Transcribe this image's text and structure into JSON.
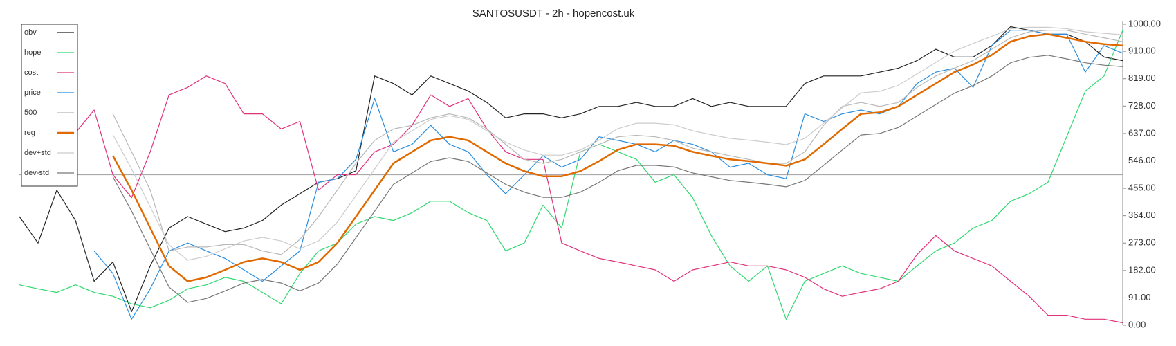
{
  "chart_data": {
    "type": "line",
    "title": "SANTOSUSDT - 2h - hopencost.uk",
    "ylim": [
      0,
      1000
    ],
    "yticks": [
      {
        "value": 0,
        "label": "0.00"
      },
      {
        "value": 91,
        "label": "91.00"
      },
      {
        "value": 182,
        "label": "182.00"
      },
      {
        "value": 273,
        "label": "273.00"
      },
      {
        "value": 364,
        "label": "364.00"
      },
      {
        "value": 455,
        "label": "455.00"
      },
      {
        "value": 546,
        "label": "546.00"
      },
      {
        "value": 637,
        "label": "637.00"
      },
      {
        "value": 728,
        "label": "728.00"
      },
      {
        "value": 819,
        "label": "819.00"
      },
      {
        "value": 910,
        "label": "910.00"
      },
      {
        "value": 1000,
        "label": "1000.00"
      }
    ],
    "reference_line": 500,
    "legend": "top-left",
    "series": [
      {
        "name": "obv",
        "color": "#222222",
        "values": [
          361,
          273,
          449,
          348,
          146,
          210,
          45,
          197,
          323,
          361,
          336,
          311,
          323,
          348,
          399,
          437,
          475,
          487,
          513,
          828,
          803,
          765,
          828,
          803,
          778,
          740,
          689,
          702,
          702,
          689,
          702,
          727,
          727,
          740,
          727,
          727,
          753,
          727,
          740,
          727,
          727,
          727,
          803,
          828,
          828,
          828,
          841,
          854,
          879,
          917,
          891,
          891,
          929,
          992,
          980,
          967,
          967,
          942,
          891,
          879
        ]
      },
      {
        "name": "hope",
        "color": "#2fd86f",
        "values": [
          134,
          121,
          109,
          134,
          109,
          96,
          71,
          58,
          83,
          121,
          134,
          159,
          146,
          109,
          71,
          172,
          247,
          273,
          336,
          361,
          348,
          374,
          412,
          412,
          374,
          348,
          247,
          273,
          399,
          323,
          576,
          601,
          576,
          551,
          475,
          500,
          424,
          298,
          197,
          146,
          197,
          20,
          146,
          172,
          197,
          172,
          159,
          146,
          197,
          247,
          273,
          323,
          348,
          412,
          437,
          475,
          626,
          778,
          828,
          980
        ]
      },
      {
        "name": "cost",
        "color": "#e0307a",
        "values": [
          null,
          null,
          626,
          639,
          715,
          500,
          424,
          576,
          765,
          790,
          828,
          803,
          702,
          702,
          652,
          677,
          449,
          500,
          500,
          576,
          601,
          664,
          765,
          727,
          753,
          652,
          576,
          551,
          551,
          273,
          247,
          222,
          210,
          197,
          184,
          146,
          184,
          197,
          210,
          197,
          197,
          184,
          159,
          121,
          96,
          109,
          121,
          146,
          235,
          298,
          247,
          222,
          197,
          146,
          96,
          33,
          33,
          20,
          20,
          8
        ]
      },
      {
        "name": "price",
        "color": "#2a8ee0",
        "values": [
          null,
          null,
          null,
          null,
          247,
          172,
          20,
          121,
          247,
          273,
          247,
          222,
          184,
          146,
          197,
          247,
          475,
          487,
          551,
          753,
          576,
          601,
          664,
          601,
          576,
          500,
          437,
          500,
          563,
          525,
          551,
          626,
          614,
          601,
          576,
          614,
          601,
          576,
          525,
          538,
          500,
          487,
          702,
          677,
          702,
          715,
          702,
          727,
          803,
          841,
          854,
          790,
          929,
          980,
          980,
          967,
          967,
          841,
          929,
          904
        ]
      },
      {
        "name": "500",
        "color": "#b8b8b8",
        "values": [
          null,
          null,
          null,
          null,
          null,
          702,
          576,
          449,
          247,
          260,
          260,
          268,
          268,
          247,
          235,
          285,
          361,
          449,
          538,
          614,
          652,
          664,
          689,
          702,
          689,
          652,
          601,
          551,
          538,
          551,
          576,
          601,
          626,
          631,
          626,
          614,
          588,
          576,
          563,
          551,
          538,
          538,
          576,
          664,
          727,
          740,
          727,
          740,
          790,
          828,
          854,
          879,
          917,
          955,
          975,
          980,
          980,
          967,
          955,
          942
        ]
      },
      {
        "name": "reg",
        "color": "#e06a00",
        "values": [
          null,
          null,
          null,
          null,
          null,
          563,
          449,
          323,
          197,
          146,
          159,
          184,
          210,
          222,
          210,
          184,
          210,
          273,
          361,
          449,
          538,
          576,
          614,
          626,
          614,
          576,
          538,
          512,
          495,
          495,
          512,
          545,
          583,
          601,
          601,
          596,
          576,
          563,
          551,
          545,
          538,
          530,
          551,
          601,
          652,
          702,
          707,
          727,
          765,
          803,
          841,
          866,
          898,
          942,
          960,
          967,
          955,
          942,
          934,
          929
        ]
      },
      {
        "name": "dev+std",
        "color": "#cccccc",
        "values": [
          null,
          null,
          null,
          null,
          null,
          633,
          519,
          393,
          267,
          216,
          229,
          254,
          280,
          292,
          280,
          254,
          280,
          343,
          431,
          519,
          608,
          646,
          684,
          696,
          684,
          646,
          608,
          582,
          565,
          565,
          582,
          615,
          653,
          671,
          671,
          666,
          646,
          633,
          621,
          615,
          608,
          600,
          621,
          671,
          722,
          772,
          777,
          797,
          835,
          873,
          911,
          936,
          960,
          985,
          990,
          990,
          985,
          975,
          970,
          965
        ]
      },
      {
        "name": "dev-std",
        "color": "#777777",
        "values": [
          null,
          null,
          null,
          null,
          null,
          493,
          379,
          253,
          127,
          76,
          89,
          114,
          140,
          152,
          140,
          114,
          140,
          203,
          291,
          379,
          468,
          506,
          544,
          556,
          544,
          506,
          468,
          442,
          425,
          425,
          442,
          475,
          513,
          531,
          531,
          526,
          506,
          493,
          481,
          475,
          468,
          460,
          481,
          531,
          582,
          632,
          637,
          657,
          695,
          733,
          771,
          796,
          828,
          872,
          890,
          897,
          885,
          872,
          864,
          859
        ]
      }
    ]
  }
}
